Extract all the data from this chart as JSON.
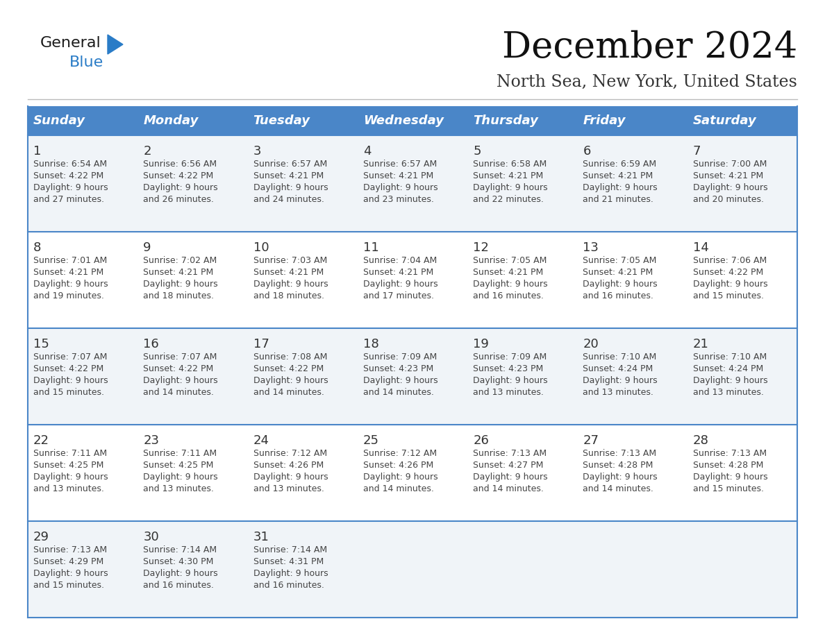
{
  "title": "December 2024",
  "subtitle": "North Sea, New York, United States",
  "header_color": "#4a86c8",
  "header_text_color": "#ffffff",
  "odd_row_bg": "#f0f4f8",
  "even_row_bg": "#ffffff",
  "border_color": "#4a86c8",
  "text_color": "#444444",
  "days_of_week": [
    "Sunday",
    "Monday",
    "Tuesday",
    "Wednesday",
    "Thursday",
    "Friday",
    "Saturday"
  ],
  "weeks": [
    [
      {
        "day": 1,
        "sunrise": "6:54 AM",
        "sunset": "4:22 PM",
        "daylight_h": "9 hours",
        "daylight_m": "and 27 minutes."
      },
      {
        "day": 2,
        "sunrise": "6:56 AM",
        "sunset": "4:22 PM",
        "daylight_h": "9 hours",
        "daylight_m": "and 26 minutes."
      },
      {
        "day": 3,
        "sunrise": "6:57 AM",
        "sunset": "4:21 PM",
        "daylight_h": "9 hours",
        "daylight_m": "and 24 minutes."
      },
      {
        "day": 4,
        "sunrise": "6:57 AM",
        "sunset": "4:21 PM",
        "daylight_h": "9 hours",
        "daylight_m": "and 23 minutes."
      },
      {
        "day": 5,
        "sunrise": "6:58 AM",
        "sunset": "4:21 PM",
        "daylight_h": "9 hours",
        "daylight_m": "and 22 minutes."
      },
      {
        "day": 6,
        "sunrise": "6:59 AM",
        "sunset": "4:21 PM",
        "daylight_h": "9 hours",
        "daylight_m": "and 21 minutes."
      },
      {
        "day": 7,
        "sunrise": "7:00 AM",
        "sunset": "4:21 PM",
        "daylight_h": "9 hours",
        "daylight_m": "and 20 minutes."
      }
    ],
    [
      {
        "day": 8,
        "sunrise": "7:01 AM",
        "sunset": "4:21 PM",
        "daylight_h": "9 hours",
        "daylight_m": "and 19 minutes."
      },
      {
        "day": 9,
        "sunrise": "7:02 AM",
        "sunset": "4:21 PM",
        "daylight_h": "9 hours",
        "daylight_m": "and 18 minutes."
      },
      {
        "day": 10,
        "sunrise": "7:03 AM",
        "sunset": "4:21 PM",
        "daylight_h": "9 hours",
        "daylight_m": "and 18 minutes."
      },
      {
        "day": 11,
        "sunrise": "7:04 AM",
        "sunset": "4:21 PM",
        "daylight_h": "9 hours",
        "daylight_m": "and 17 minutes."
      },
      {
        "day": 12,
        "sunrise": "7:05 AM",
        "sunset": "4:21 PM",
        "daylight_h": "9 hours",
        "daylight_m": "and 16 minutes."
      },
      {
        "day": 13,
        "sunrise": "7:05 AM",
        "sunset": "4:21 PM",
        "daylight_h": "9 hours",
        "daylight_m": "and 16 minutes."
      },
      {
        "day": 14,
        "sunrise": "7:06 AM",
        "sunset": "4:22 PM",
        "daylight_h": "9 hours",
        "daylight_m": "and 15 minutes."
      }
    ],
    [
      {
        "day": 15,
        "sunrise": "7:07 AM",
        "sunset": "4:22 PM",
        "daylight_h": "9 hours",
        "daylight_m": "and 15 minutes."
      },
      {
        "day": 16,
        "sunrise": "7:07 AM",
        "sunset": "4:22 PM",
        "daylight_h": "9 hours",
        "daylight_m": "and 14 minutes."
      },
      {
        "day": 17,
        "sunrise": "7:08 AM",
        "sunset": "4:22 PM",
        "daylight_h": "9 hours",
        "daylight_m": "and 14 minutes."
      },
      {
        "day": 18,
        "sunrise": "7:09 AM",
        "sunset": "4:23 PM",
        "daylight_h": "9 hours",
        "daylight_m": "and 14 minutes."
      },
      {
        "day": 19,
        "sunrise": "7:09 AM",
        "sunset": "4:23 PM",
        "daylight_h": "9 hours",
        "daylight_m": "and 13 minutes."
      },
      {
        "day": 20,
        "sunrise": "7:10 AM",
        "sunset": "4:24 PM",
        "daylight_h": "9 hours",
        "daylight_m": "and 13 minutes."
      },
      {
        "day": 21,
        "sunrise": "7:10 AM",
        "sunset": "4:24 PM",
        "daylight_h": "9 hours",
        "daylight_m": "and 13 minutes."
      }
    ],
    [
      {
        "day": 22,
        "sunrise": "7:11 AM",
        "sunset": "4:25 PM",
        "daylight_h": "9 hours",
        "daylight_m": "and 13 minutes."
      },
      {
        "day": 23,
        "sunrise": "7:11 AM",
        "sunset": "4:25 PM",
        "daylight_h": "9 hours",
        "daylight_m": "and 13 minutes."
      },
      {
        "day": 24,
        "sunrise": "7:12 AM",
        "sunset": "4:26 PM",
        "daylight_h": "9 hours",
        "daylight_m": "and 13 minutes."
      },
      {
        "day": 25,
        "sunrise": "7:12 AM",
        "sunset": "4:26 PM",
        "daylight_h": "9 hours",
        "daylight_m": "and 14 minutes."
      },
      {
        "day": 26,
        "sunrise": "7:13 AM",
        "sunset": "4:27 PM",
        "daylight_h": "9 hours",
        "daylight_m": "and 14 minutes."
      },
      {
        "day": 27,
        "sunrise": "7:13 AM",
        "sunset": "4:28 PM",
        "daylight_h": "9 hours",
        "daylight_m": "and 14 minutes."
      },
      {
        "day": 28,
        "sunrise": "7:13 AM",
        "sunset": "4:28 PM",
        "daylight_h": "9 hours",
        "daylight_m": "and 15 minutes."
      }
    ],
    [
      {
        "day": 29,
        "sunrise": "7:13 AM",
        "sunset": "4:29 PM",
        "daylight_h": "9 hours",
        "daylight_m": "and 15 minutes."
      },
      {
        "day": 30,
        "sunrise": "7:14 AM",
        "sunset": "4:30 PM",
        "daylight_h": "9 hours",
        "daylight_m": "and 16 minutes."
      },
      {
        "day": 31,
        "sunrise": "7:14 AM",
        "sunset": "4:31 PM",
        "daylight_h": "9 hours",
        "daylight_m": "and 16 minutes."
      },
      null,
      null,
      null,
      null
    ]
  ],
  "logo_color_general": "#1a1a1a",
  "logo_color_blue": "#2a7cc7"
}
